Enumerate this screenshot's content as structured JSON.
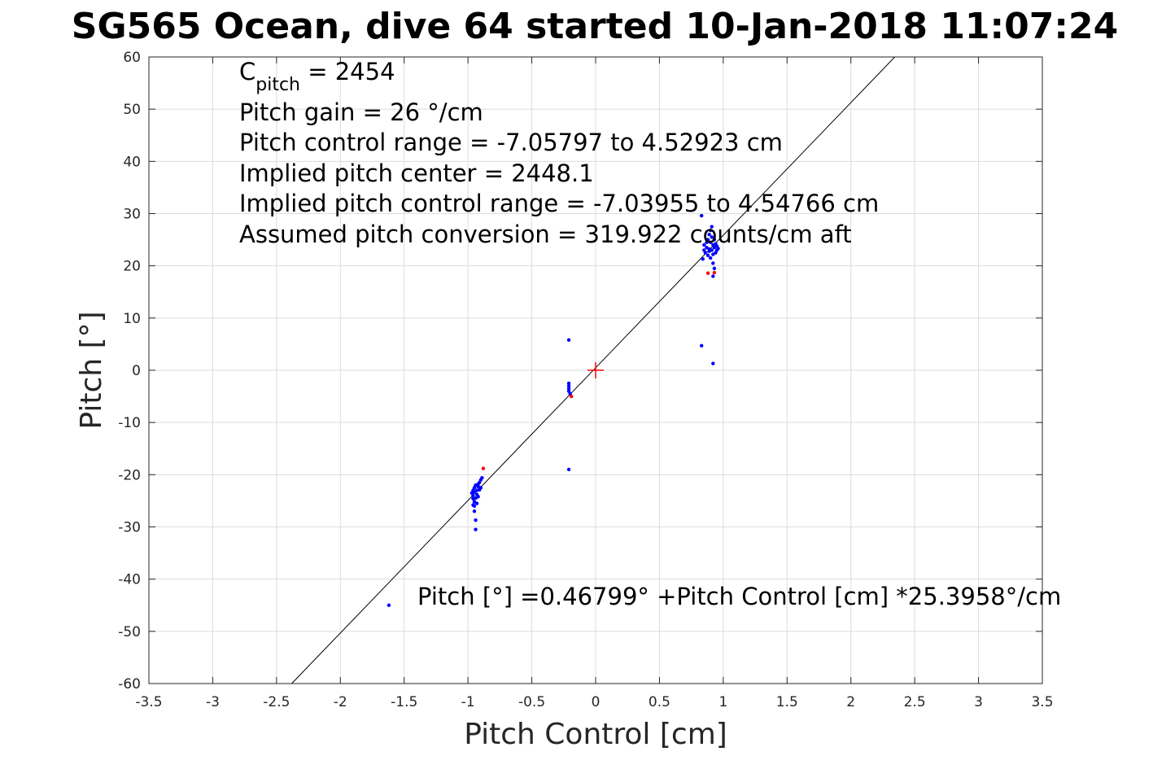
{
  "chart_data": {
    "type": "scatter",
    "title": "SG565 Ocean, dive 64 started 10-Jan-2018 11:07:24",
    "xlabel": "Pitch Control [cm]",
    "ylabel": "Pitch [°]",
    "xlim": [
      -3.5,
      3.5
    ],
    "ylim": [
      -60,
      60
    ],
    "xticks": [
      -3.5,
      -3,
      -2.5,
      -2,
      -1.5,
      -1,
      -0.5,
      0,
      0.5,
      1,
      1.5,
      2,
      2.5,
      3,
      3.5
    ],
    "yticks": [
      -60,
      -50,
      -40,
      -30,
      -20,
      -10,
      0,
      10,
      20,
      30,
      40,
      50,
      60
    ],
    "grid": true,
    "fit_line": {
      "intercept": 0.46799,
      "slope": 25.3958
    },
    "center_marker": {
      "x": 0,
      "y": 0,
      "color": "#ff0000"
    },
    "annotations": {
      "cpitch_label": "C",
      "cpitch_subscript": "pitch",
      "cpitch_value": " = 2454",
      "lines": [
        "Pitch gain = 26 °/cm",
        "Pitch control range = -7.05797 to 4.52923 cm",
        "Implied pitch center = 2448.1",
        "Implied pitch control range = -7.03955 to 4.54766 cm",
        "Assumed pitch conversion = 319.922 counts/cm aft"
      ],
      "fit_equation": "Pitch [°] =0.46799° +Pitch Control [cm] *25.3958°/cm"
    },
    "colors": {
      "points": "#0000ff",
      "outliers": "#ff0000",
      "fit": "#000000",
      "grid": "#dcdcdc"
    },
    "series": [
      {
        "color": "#0000ff",
        "points": [
          [
            -1.62,
            -45
          ],
          [
            -0.94,
            -30.5
          ],
          [
            -0.94,
            -28.7
          ],
          [
            -0.95,
            -27
          ],
          [
            -0.95,
            -26
          ],
          [
            -0.95,
            -25.2
          ],
          [
            -0.96,
            -24.6
          ],
          [
            -0.96,
            -24
          ],
          [
            -0.97,
            -23.5
          ],
          [
            -0.96,
            -23
          ],
          [
            -0.95,
            -22.5
          ],
          [
            -0.94,
            -24.5
          ],
          [
            -0.93,
            -23.8
          ],
          [
            -0.93,
            -23
          ],
          [
            -0.92,
            -22.3
          ],
          [
            -0.92,
            -21.8
          ],
          [
            -0.91,
            -22.9
          ],
          [
            -0.91,
            -21.5
          ],
          [
            -0.9,
            -21
          ],
          [
            -0.9,
            -22.5
          ],
          [
            -0.89,
            -20.6
          ],
          [
            -0.94,
            -22
          ],
          [
            -0.93,
            -25.5
          ],
          [
            -0.92,
            -24.2
          ],
          [
            -0.96,
            -25.8
          ],
          [
            -0.95,
            -23.3
          ],
          [
            -0.21,
            5.8
          ],
          [
            -0.21,
            -2.5
          ],
          [
            -0.21,
            -3
          ],
          [
            -0.21,
            -3.5
          ],
          [
            -0.21,
            -4
          ],
          [
            -0.2,
            -4.5
          ],
          [
            -0.21,
            -19
          ],
          [
            0.83,
            29.6
          ],
          [
            0.83,
            4.7
          ],
          [
            0.92,
            1.3
          ],
          [
            0.84,
            21.3
          ],
          [
            0.85,
            23
          ],
          [
            0.85,
            24
          ],
          [
            0.86,
            22.5
          ],
          [
            0.87,
            23.5
          ],
          [
            0.87,
            24.5
          ],
          [
            0.88,
            25
          ],
          [
            0.88,
            22
          ],
          [
            0.89,
            23.2
          ],
          [
            0.89,
            26
          ],
          [
            0.9,
            24.5
          ],
          [
            0.9,
            21.5
          ],
          [
            0.91,
            23
          ],
          [
            0.91,
            25.5
          ],
          [
            0.91,
            27.5
          ],
          [
            0.92,
            22.2
          ],
          [
            0.92,
            24
          ],
          [
            0.92,
            20.5
          ],
          [
            0.93,
            23.5
          ],
          [
            0.93,
            19.5
          ],
          [
            0.93,
            25
          ],
          [
            0.94,
            22.5
          ],
          [
            0.94,
            24.2
          ],
          [
            0.95,
            23
          ],
          [
            0.95,
            23.8
          ],
          [
            0.96,
            23.3
          ],
          [
            0.92,
            18
          ],
          [
            0.9,
            26.8
          ],
          [
            0.89,
            22.8
          ]
        ]
      },
      {
        "color": "#ff0000",
        "points": [
          [
            -0.88,
            -18.8
          ],
          [
            -0.19,
            -5
          ],
          [
            0.88,
            18.6
          ],
          [
            0.93,
            18.7
          ]
        ]
      }
    ]
  }
}
